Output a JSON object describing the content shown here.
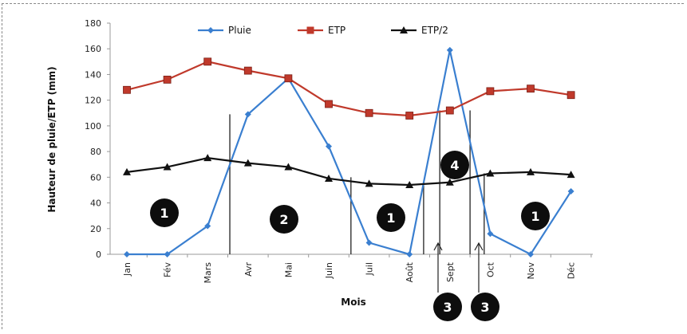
{
  "chart_data": {
    "type": "line",
    "title": "",
    "xlabel": "Mois",
    "ylabel": "Hauteur de pluie/ETP (mm)",
    "ylim": [
      0,
      180
    ],
    "yticks": [
      "0",
      "20",
      "40",
      "60",
      "80",
      "100",
      "120",
      "140",
      "160",
      "180"
    ],
    "categories": [
      "Jan",
      "Fév",
      "Mars",
      "Avr",
      "Mai",
      "Juin",
      "Juil",
      "Août",
      "Sept",
      "Oct",
      "Nov",
      "Déc"
    ],
    "series": [
      {
        "name": "Pluie",
        "color": "#3a7fd0",
        "marker": "diamond",
        "values": [
          0,
          0,
          22,
          109,
          137,
          84,
          9,
          0,
          159,
          16,
          0,
          49
        ]
      },
      {
        "name": "ETP",
        "color": "#c0392b",
        "marker": "square",
        "values": [
          128,
          136,
          150,
          143,
          137,
          117,
          110,
          108,
          112,
          127,
          129,
          124
        ]
      },
      {
        "name": "ETP/2",
        "color": "#111111",
        "marker": "triangle",
        "values": [
          64,
          68,
          75,
          71,
          68,
          59,
          55,
          54,
          56,
          63,
          64,
          62
        ]
      }
    ],
    "legend_position": "top-center",
    "grid": false,
    "zones": [
      "1",
      "2",
      "1",
      "4",
      "1",
      "3",
      "3"
    ]
  }
}
